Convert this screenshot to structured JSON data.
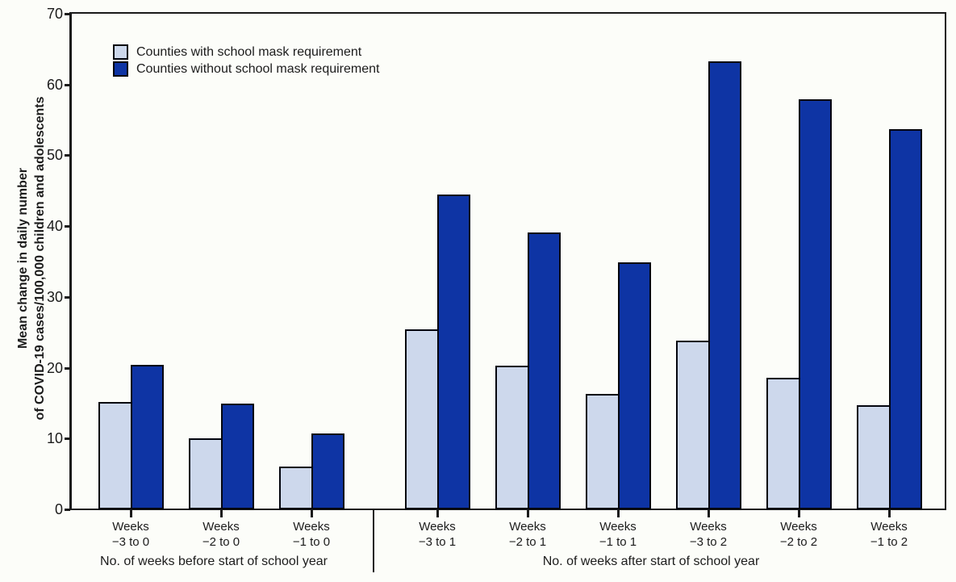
{
  "chart_data": {
    "type": "bar",
    "title": "",
    "ylabel_lines": [
      "Mean change in daily number",
      "of COVID-19 cases/100,000 children and adolescents"
    ],
    "ylim": [
      0,
      70
    ],
    "yticks": [
      0,
      10,
      20,
      30,
      40,
      50,
      60,
      70
    ],
    "grid": false,
    "legend_position": "top-left",
    "categories": [
      {
        "line1": "Weeks",
        "line2": "−3 to 0"
      },
      {
        "line1": "Weeks",
        "line2": "−2 to 0"
      },
      {
        "line1": "Weeks",
        "line2": "−1 to 0"
      },
      {
        "line1": "Weeks",
        "line2": "−3 to 1"
      },
      {
        "line1": "Weeks",
        "line2": "−2 to 1"
      },
      {
        "line1": "Weeks",
        "line2": "−1 to 1"
      },
      {
        "line1": "Weeks",
        "line2": "−3 to 2"
      },
      {
        "line1": "Weeks",
        "line2": "−2 to 2"
      },
      {
        "line1": "Weeks",
        "line2": "−1 to 2"
      }
    ],
    "series": [
      {
        "name": "Counties with school mask requirement",
        "color": "#cdd8ec",
        "values": [
          15.2,
          10.0,
          6.0,
          25.4,
          20.3,
          16.3,
          23.8,
          18.6,
          14.7
        ]
      },
      {
        "name": "Counties without school mask requirement",
        "color": "#0e34a4",
        "values": [
          20.4,
          14.9,
          10.7,
          44.5,
          39.1,
          34.9,
          63.3,
          57.9,
          53.7
        ]
      }
    ],
    "sections": [
      {
        "label": "No. of weeks before start of school year",
        "group_count": 3
      },
      {
        "label": "No. of weeks after start of school year",
        "group_count": 6
      }
    ]
  },
  "colors": {
    "background": "#fcfdf9",
    "axis": "#1a1a1a",
    "bar_outline": "#04060f",
    "text": "#1c1c1c"
  }
}
